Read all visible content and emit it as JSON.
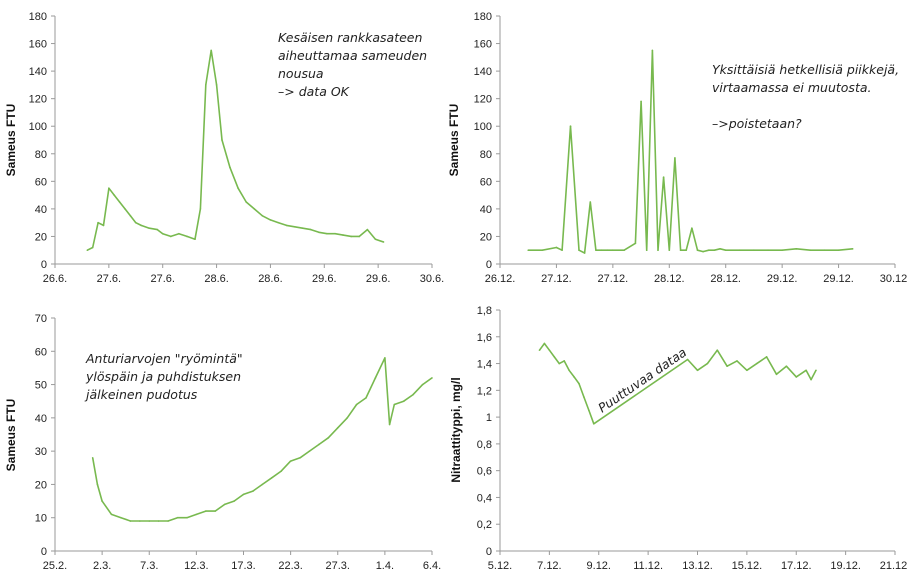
{
  "chart_data": [
    {
      "type": "line",
      "ylabel": "Sameus FTU",
      "ylim": [
        0,
        180
      ],
      "yticks": [
        "0",
        "20",
        "40",
        "60",
        "80",
        "100",
        "120",
        "140",
        "160",
        "180"
      ],
      "xticks": [
        "26.6.",
        "27.6.",
        "27.6.",
        "28.6.",
        "28.6.",
        "29.6.",
        "29.6.",
        "30.6."
      ],
      "xlim": [
        0,
        14
      ],
      "annotation": [
        "Kesäisen rankkasateen",
        "aiheuttamaa sameuden",
        "nousua",
        "–> data OK"
      ],
      "x": [
        1.2,
        1.4,
        1.6,
        1.8,
        2.0,
        2.2,
        2.4,
        2.6,
        2.8,
        3.0,
        3.2,
        3.5,
        3.8,
        4.0,
        4.3,
        4.6,
        4.9,
        5.2,
        5.4,
        5.6,
        5.8,
        6.0,
        6.2,
        6.5,
        6.8,
        7.1,
        7.4,
        7.7,
        8.0,
        8.3,
        8.6,
        8.9,
        9.2,
        9.5,
        9.8,
        10.1,
        10.4,
        10.7,
        11.0,
        11.3,
        11.6,
        11.9,
        12.2
      ],
      "values": [
        10,
        12,
        30,
        28,
        55,
        50,
        45,
        40,
        35,
        30,
        28,
        26,
        25,
        22,
        20,
        22,
        20,
        18,
        40,
        130,
        155,
        130,
        90,
        70,
        55,
        45,
        40,
        35,
        32,
        30,
        28,
        27,
        26,
        25,
        23,
        22,
        22,
        21,
        20,
        20,
        25,
        18,
        16
      ]
    },
    {
      "type": "line",
      "ylabel": "Sameus FTU",
      "ylim": [
        0,
        180
      ],
      "yticks": [
        "0",
        "20",
        "40",
        "60",
        "80",
        "100",
        "120",
        "140",
        "160",
        "180"
      ],
      "xticks": [
        "26.12.",
        "27.12.",
        "27.12.",
        "28.12.",
        "28.12.",
        "29.12.",
        "29.12.",
        "30.12."
      ],
      "xlim": [
        0,
        14
      ],
      "annotation": [
        "Yksittäisiä hetkellisiä piikkejä,",
        "virtaamassa ei muutosta.",
        "",
        "–>poistetaan?"
      ],
      "x": [
        1.0,
        1.5,
        2.0,
        2.2,
        2.5,
        2.8,
        3.0,
        3.2,
        3.4,
        3.6,
        3.8,
        4.0,
        4.4,
        4.8,
        5.0,
        5.2,
        5.4,
        5.6,
        5.8,
        6.0,
        6.2,
        6.4,
        6.6,
        6.8,
        7.0,
        7.2,
        7.4,
        7.6,
        7.8,
        8.0,
        8.5,
        9.0,
        9.5,
        10,
        10.5,
        11,
        11.5,
        12,
        12.5
      ],
      "values": [
        10,
        10,
        12,
        10,
        100,
        10,
        8,
        45,
        10,
        10,
        10,
        10,
        10,
        15,
        118,
        10,
        155,
        10,
        63,
        10,
        77,
        10,
        10,
        26,
        10,
        9,
        10,
        10,
        11,
        10,
        10,
        10,
        10,
        10,
        11,
        10,
        10,
        10,
        11
      ]
    },
    {
      "type": "line",
      "ylabel": "Sameus FTU",
      "ylim": [
        0,
        70
      ],
      "yticks": [
        "0",
        "10",
        "20",
        "30",
        "40",
        "50",
        "60",
        "70"
      ],
      "xticks": [
        "25.2.",
        "2.3.",
        "7.3.",
        "12.3.",
        "17.3.",
        "22.3.",
        "27.3.",
        "1.4.",
        "6.4."
      ],
      "xlim": [
        0,
        40
      ],
      "annotation": [
        "Anturiarvojen \"ryömintä\"",
        "ylöspäin ja puhdistuksen",
        "jälkeinen pudotus"
      ],
      "x": [
        4,
        4.5,
        5,
        6,
        7,
        8,
        9,
        10,
        11,
        12,
        13,
        14,
        15,
        16,
        17,
        18,
        19,
        20,
        21,
        22,
        23,
        24,
        25,
        26,
        27,
        28,
        29,
        30,
        31,
        32,
        33,
        34,
        35,
        35.5,
        36,
        37,
        38,
        39,
        40
      ],
      "values": [
        28,
        20,
        15,
        11,
        10,
        9,
        9,
        9,
        9,
        9,
        10,
        10,
        11,
        12,
        12,
        14,
        15,
        17,
        18,
        20,
        22,
        24,
        27,
        28,
        30,
        32,
        34,
        37,
        40,
        44,
        46,
        52,
        58,
        38,
        44,
        45,
        47,
        50,
        52
      ]
    },
    {
      "type": "line",
      "ylabel": "Nitraattityppi, mg/l",
      "ylim": [
        0,
        1.8
      ],
      "yticks": [
        "0",
        "0,2",
        "0,4",
        "0,6",
        "0,8",
        "1",
        "1,2",
        "1,4",
        "1,6",
        "1,8"
      ],
      "xticks": [
        "5.12.",
        "7.12.",
        "9.12.",
        "11.12.",
        "13.12.",
        "15.12.",
        "17.12.",
        "19.12.",
        "21.12."
      ],
      "xlim": [
        0,
        16
      ],
      "annotation": [
        "Puuttuvaa dataa"
      ],
      "x": [
        1.6,
        1.8,
        2.0,
        2.2,
        2.4,
        2.6,
        2.8,
        3.0,
        3.2,
        3.4,
        3.6,
        3.8,
        7.6,
        8.0,
        8.4,
        8.8,
        9.2,
        9.6,
        10.0,
        10.4,
        10.8,
        11.2,
        11.6,
        12.0,
        12.4,
        12.6,
        12.8
      ],
      "values": [
        1.5,
        1.55,
        1.5,
        1.45,
        1.4,
        1.42,
        1.35,
        1.3,
        1.25,
        1.15,
        1.05,
        0.95,
        1.43,
        1.35,
        1.4,
        1.5,
        1.38,
        1.42,
        1.35,
        1.4,
        1.45,
        1.32,
        1.38,
        1.3,
        1.35,
        1.28,
        1.35
      ]
    }
  ]
}
